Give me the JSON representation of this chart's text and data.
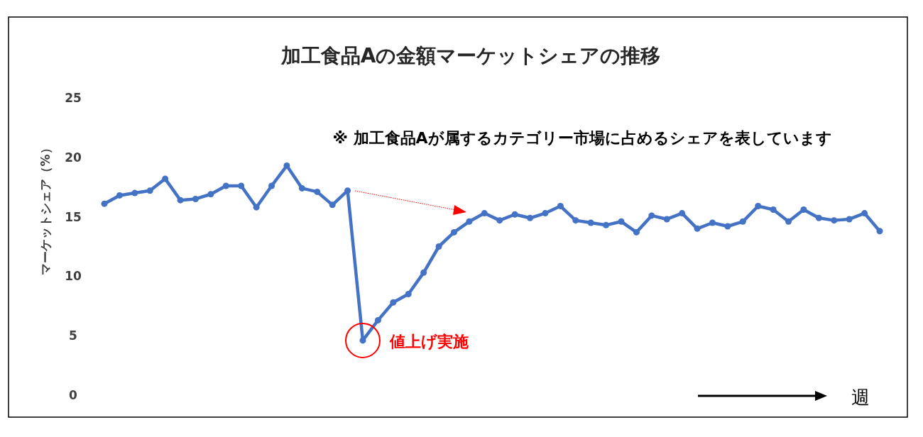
{
  "chart_data": {
    "type": "line",
    "title": "加工食品Aの金額マーケットシェアの推移",
    "xlabel": "週",
    "ylabel": "マーケットシェア（%）",
    "annotations": [
      "※ 加工食品Aが属するカテゴリー市場に占めるシェアを表しています",
      "値上げ実施"
    ],
    "categories": [
      null,
      null,
      null,
      null,
      null,
      null,
      null,
      null,
      null,
      null,
      null,
      null,
      null,
      null,
      null,
      null,
      null,
      null,
      null,
      null,
      null,
      null,
      null,
      null,
      null,
      null,
      null,
      null,
      null,
      null,
      null,
      null,
      null,
      null,
      null,
      null,
      null,
      null,
      null,
      null,
      null,
      null,
      null,
      null,
      null,
      null,
      null,
      null,
      null,
      null,
      null,
      null
    ],
    "series": [
      {
        "color": "#4472c4",
        "values": [
          16.1,
          16.8,
          17.0,
          17.2,
          18.2,
          16.4,
          16.5,
          16.9,
          17.6,
          17.6,
          15.8,
          17.6,
          19.3,
          17.4,
          17.1,
          16.0,
          17.2,
          4.6,
          6.3,
          7.8,
          8.5,
          10.3,
          12.5,
          13.7,
          14.6,
          15.3,
          14.7,
          15.2,
          14.9,
          15.3,
          15.9,
          14.7,
          14.5,
          14.3,
          14.6,
          13.7,
          15.1,
          14.8,
          15.3,
          14.0,
          14.5,
          14.2,
          14.6,
          15.9,
          15.6,
          14.6,
          15.6,
          14.9,
          14.7,
          14.8,
          15.3,
          13.8
        ]
      }
    ],
    "ylim": [
      0,
      25
    ],
    "yticks": [
      0,
      5,
      10,
      15,
      20,
      25
    ],
    "marker": "circle",
    "line_style": "solid",
    "tick_labels": "y"
  }
}
